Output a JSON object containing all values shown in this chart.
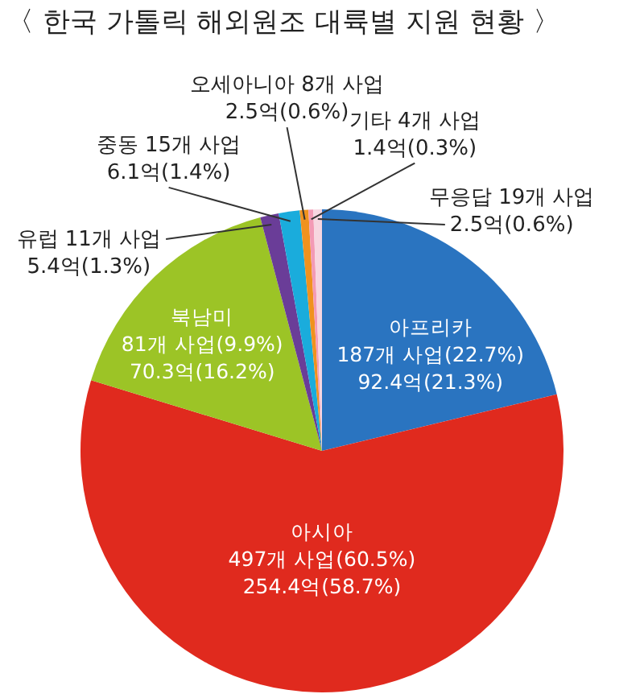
{
  "chart_data": {
    "type": "pie",
    "title": "〈 한국 가톨릭 해외원조 대륙별 지원 현황 〉",
    "categories": [
      "아프리카",
      "아시아",
      "북남미",
      "유럽",
      "중동",
      "오세아니아",
      "기타",
      "무응답"
    ],
    "values": [
      92.4,
      254.4,
      70.3,
      5.4,
      6.1,
      2.5,
      1.4,
      2.5
    ],
    "colors": [
      "#2a74c0",
      "#e02a1e",
      "#9cc426",
      "#6a3d98",
      "#1aacdc",
      "#f0921e",
      "#f39ab5",
      "#f7d6e0"
    ],
    "value_labels": [
      "187개 사업(22.7%)\n92.4억(21.3%)",
      "497개 사업(60.5%)\n254.4억(58.7%)",
      "81개 사업(9.9%)\n70.3억(16.2%)",
      "11개 사업\n5.4억(1.3%)",
      "15개 사업\n6.1억(1.4%)",
      "8개 사업\n2.5억(0.6%)",
      "4개 사업\n1.4억(0.3%)",
      "19개 사업\n2.5억(0.6%)"
    ]
  }
}
